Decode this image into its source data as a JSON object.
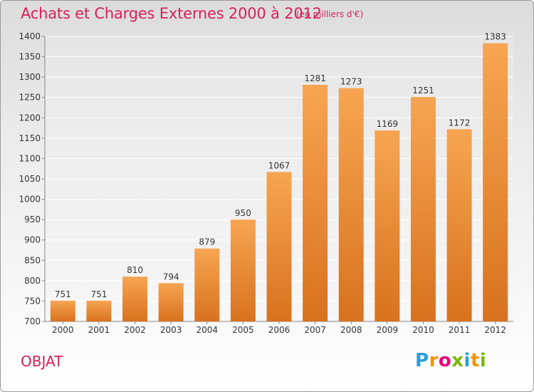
{
  "chart_data": {
    "type": "bar",
    "title": "Achats et Charges Externes 2000 à 2012",
    "subtitle": "(en milliers d'€)",
    "categories": [
      "2000",
      "2001",
      "2002",
      "2003",
      "2004",
      "2005",
      "2006",
      "2007",
      "2008",
      "2009",
      "2010",
      "2011",
      "2012"
    ],
    "values": [
      751,
      751,
      810,
      794,
      879,
      950,
      1067,
      1281,
      1273,
      1169,
      1251,
      1172,
      1383
    ],
    "ylim": [
      700,
      1400
    ],
    "yticks": [
      700,
      750,
      800,
      850,
      900,
      950,
      1000,
      1050,
      1100,
      1150,
      1200,
      1250,
      1300,
      1350,
      1400
    ],
    "grid": true,
    "bar_color": "#f08a2e"
  },
  "footer": {
    "place": "OBJAT",
    "logo_letters": [
      "P",
      "r",
      "o",
      "x",
      "i",
      "t",
      "i"
    ],
    "logo_colors": [
      "#2a9fd8",
      "#f29400",
      "#e6007e",
      "#7ab800",
      "#2a9fd8",
      "#f29400",
      "#7ab800"
    ]
  }
}
